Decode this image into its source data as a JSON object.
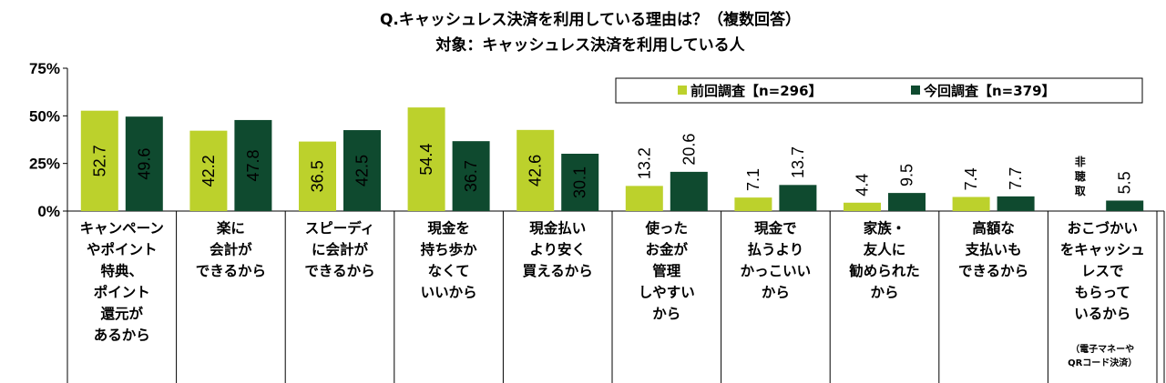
{
  "chart_data": {
    "type": "bar",
    "title": "Q.キャッシュレス決済を利用している理由は？（複数回答）",
    "subtitle": "対象：キャッシュレス決済を利用している人",
    "yticks": [
      "0%",
      "25%",
      "50%",
      "75%"
    ],
    "ylim": [
      0,
      75
    ],
    "categories": [
      [
        "キャンペーン",
        "やポイント",
        "特典、",
        "ポイント",
        "還元が",
        "あるから"
      ],
      [
        "楽に",
        "会計が",
        "できるから"
      ],
      [
        "スピーディ",
        "に会計が",
        "できるから"
      ],
      [
        "現金を",
        "持ち歩か",
        "なくて",
        "いいから"
      ],
      [
        "現金払い",
        "より安く",
        "買えるから"
      ],
      [
        "使った",
        "お金が",
        "管理",
        "しやすい",
        "から"
      ],
      [
        "現金で",
        "払うより",
        "かっこいい",
        "から"
      ],
      [
        "家族・",
        "友人に",
        "勧められた",
        "から"
      ],
      [
        "高額な",
        "支払いも",
        "できるから"
      ],
      [
        "おこづかい",
        "をキャッシュ",
        "レスで",
        "もらって",
        "いるから"
      ]
    ],
    "category_notes": [
      "",
      "",
      "",
      "",
      "",
      "",
      "",
      "",
      "",
      "（電子マネーや QRコード決済）"
    ],
    "series": [
      {
        "name": "前回調査【n=296】",
        "color": "#bcd12c",
        "values": [
          52.7,
          42.2,
          36.5,
          54.4,
          42.6,
          13.2,
          7.1,
          4.4,
          7.4,
          null
        ],
        "labels": [
          "52.7",
          "42.2",
          "36.5",
          "54.4",
          "42.6",
          "13.2",
          "7.1",
          "4.4",
          "7.4",
          "非聴取"
        ]
      },
      {
        "name": "今回調査【n=379】",
        "color": "#0f4a2f",
        "values": [
          49.6,
          47.8,
          42.5,
          36.7,
          30.1,
          20.6,
          13.7,
          9.5,
          7.7,
          5.5
        ],
        "labels": [
          "49.6",
          "47.8",
          "42.5",
          "36.7",
          "30.1",
          "20.6",
          "13.7",
          "9.5",
          "7.7",
          "5.5"
        ]
      }
    ],
    "legend": "top-right",
    "grid": false
  }
}
